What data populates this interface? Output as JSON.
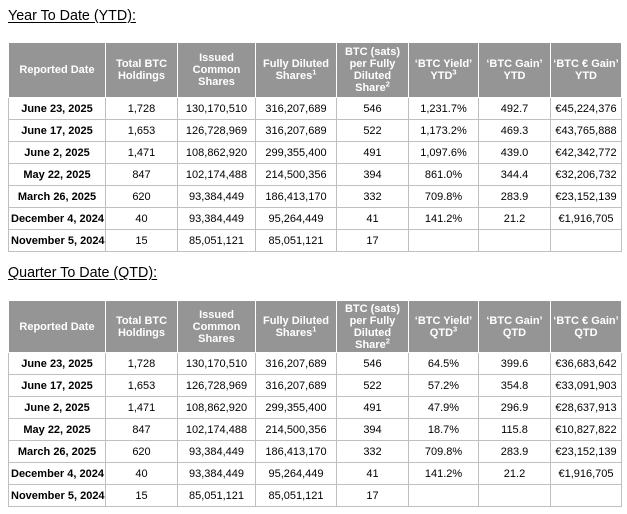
{
  "page": {
    "background": "#ffffff",
    "text_color": "#000000"
  },
  "colors": {
    "header_bg": "#959595",
    "header_text": "#ffffff",
    "grid_border": "#bfbfbf"
  },
  "sections": [
    {
      "id": "ytd",
      "title": "Year To Date (YTD):",
      "columns": [
        "Reported Date",
        "Total BTC\nHoldings",
        "Issued\nCommon\nShares",
        "Fully Diluted\nShares^1",
        "BTC (sats)\nper Fully\nDiluted\nShare^2",
        "‘BTC Yield’\nYTD^3",
        "‘BTC Gain’\nYTD",
        "‘BTC € Gain’\nYTD"
      ],
      "rows": [
        [
          "June 23, 2025",
          "1,728",
          "130,170,510",
          "316,207,689",
          "546",
          "1,231.7%",
          "492.7",
          "€45,224,376"
        ],
        [
          "June 17, 2025",
          "1,653",
          "126,728,969",
          "316,207,689",
          "522",
          "1,173.2%",
          "469.3",
          "€43,765,888"
        ],
        [
          "June 2, 2025",
          "1,471",
          "108,862,920",
          "299,355,400",
          "491",
          "1,097.6%",
          "439.0",
          "€42,342,772"
        ],
        [
          "May 22, 2025",
          "847",
          "102,174,488",
          "214,500,356",
          "394",
          "861.0%",
          "344.4",
          "€32,206,732"
        ],
        [
          "March 26, 2025",
          "620",
          "93,384,449",
          "186,413,170",
          "332",
          "709.8%",
          "283.9",
          "€23,152,139"
        ],
        [
          "December 4, 2024",
          "40",
          "93,384,449",
          "95,264,449",
          "41",
          "141.2%",
          "21.2",
          "€1,916,705"
        ],
        [
          "November 5, 2024",
          "15",
          "85,051,121",
          "85,051,121",
          "17",
          "",
          "",
          ""
        ]
      ]
    },
    {
      "id": "qtd",
      "title": "Quarter To Date (QTD):",
      "columns": [
        "Reported Date",
        "Total BTC\nHoldings",
        "Issued\nCommon\nShares",
        "Fully Diluted\nShares^1",
        "BTC (sats)\nper Fully\nDiluted\nShare^2",
        "‘BTC Yield’\nQTD^3",
        "‘BTC Gain’\nQTD",
        "‘BTC € Gain’\nQTD"
      ],
      "rows": [
        [
          "June 23, 2025",
          "1,728",
          "130,170,510",
          "316,207,689",
          "546",
          "64.5%",
          "399.6",
          "€36,683,642"
        ],
        [
          "June 17, 2025",
          "1,653",
          "126,728,969",
          "316,207,689",
          "522",
          "57.2%",
          "354.8",
          "€33,091,903"
        ],
        [
          "June 2, 2025",
          "1,471",
          "108,862,920",
          "299,355,400",
          "491",
          "47.9%",
          "296.9",
          "€28,637,913"
        ],
        [
          "May 22, 2025",
          "847",
          "102,174,488",
          "214,500,356",
          "394",
          "18.7%",
          "115.8",
          "€10,827,822"
        ],
        [
          "March 26, 2025",
          "620",
          "93,384,449",
          "186,413,170",
          "332",
          "709.8%",
          "283.9",
          "€23,152,139"
        ],
        [
          "December 4, 2024",
          "40",
          "93,384,449",
          "95,264,449",
          "41",
          "141.2%",
          "21.2",
          "€1,916,705"
        ],
        [
          "November 5, 2024",
          "15",
          "85,051,121",
          "85,051,121",
          "17",
          "",
          "",
          ""
        ]
      ]
    }
  ]
}
